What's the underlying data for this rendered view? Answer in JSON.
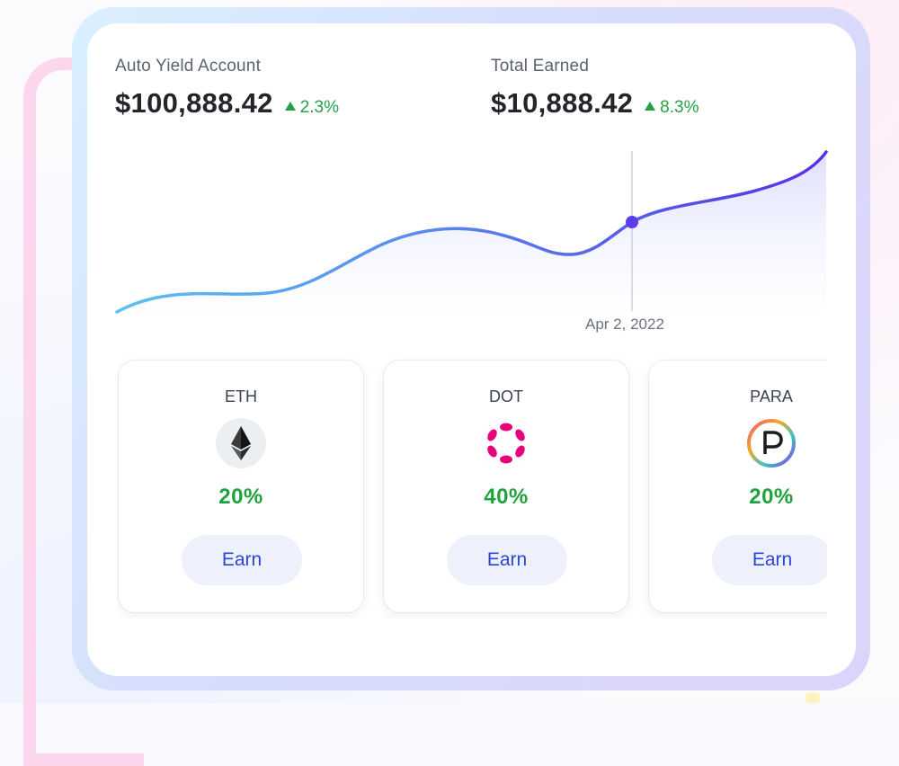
{
  "account": {
    "label": "Auto Yield Account",
    "value": "$100,888.42",
    "change": "2.3%"
  },
  "earned": {
    "label": "Total Earned",
    "value": "$10,888.42",
    "change": "8.3%"
  },
  "chart": {
    "selected_date": "Apr 2, 2022"
  },
  "assets": [
    {
      "name": "ETH",
      "apy": "20%",
      "button": "Earn",
      "icon": "ethereum-icon"
    },
    {
      "name": "DOT",
      "apy": "40%",
      "button": "Earn",
      "icon": "polkadot-icon"
    },
    {
      "name": "PARA",
      "apy": "20%",
      "button": "Earn",
      "icon": "parallel-icon"
    }
  ],
  "colors": {
    "positive": "#25a244",
    "line_start": "#5cc0f2",
    "line_end": "#5a2ee6",
    "button_text": "#2a47d6"
  }
}
